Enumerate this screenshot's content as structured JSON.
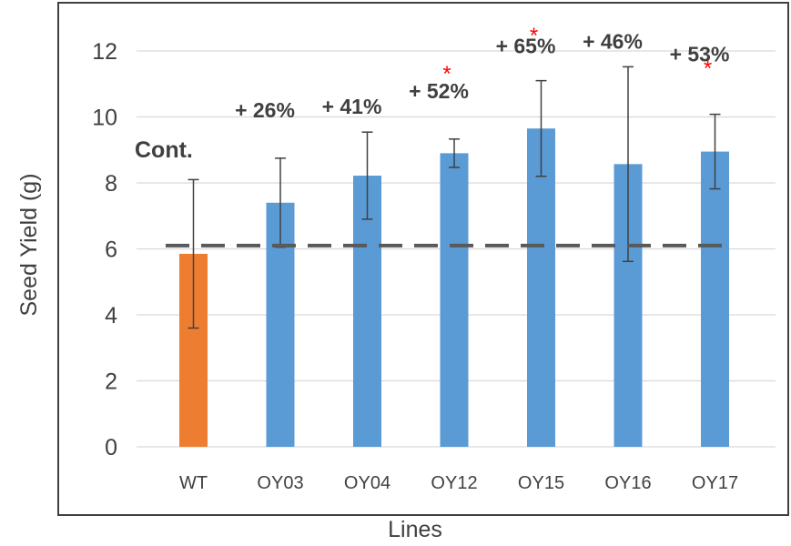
{
  "chart_data": {
    "type": "bar",
    "xlabel": "Lines",
    "ylabel": "Seed Yield (g)",
    "ylim": [
      0,
      13
    ],
    "yticks": [
      0,
      2,
      4,
      6,
      8,
      10,
      12
    ],
    "grid": "horizontal",
    "categories": [
      "WT",
      "OY03",
      "OY04",
      "OY12",
      "OY15",
      "OY16",
      "OY17"
    ],
    "values": [
      5.85,
      7.4,
      8.22,
      8.9,
      9.65,
      8.57,
      8.95
    ],
    "errors": [
      2.25,
      1.35,
      1.32,
      0.43,
      1.45,
      2.95,
      1.13
    ],
    "bar_colors": [
      "#ed7d31",
      "#5b9bd5",
      "#5b9bd5",
      "#5b9bd5",
      "#5b9bd5",
      "#5b9bd5",
      "#5b9bd5"
    ],
    "reference_line": {
      "value": 6.1,
      "style": "dashed",
      "color": "#595959"
    },
    "control_label": "Cont.",
    "percent_labels": [
      "",
      "+ 26%",
      "+ 41%",
      "+ 52%",
      "+ 65%",
      "+ 46%",
      "+ 53%"
    ],
    "significance": [
      "",
      "",
      "",
      "*",
      "*",
      "",
      "*"
    ],
    "significance_color": "#ff0000"
  }
}
